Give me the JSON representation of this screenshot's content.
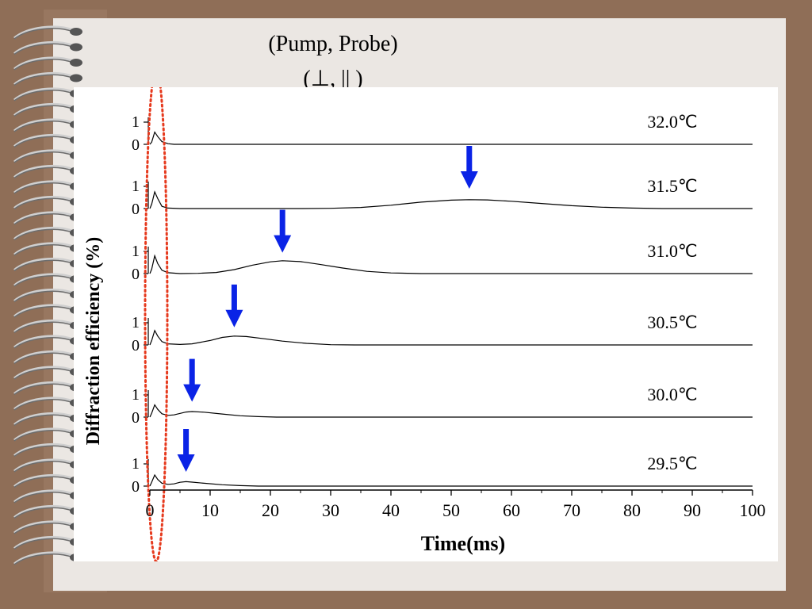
{
  "slide": {
    "header_line1": "(Pump, Probe)",
    "header_line2": "(⊥, || )"
  },
  "chart_data": {
    "type": "line",
    "xlabel": "Time(ms)",
    "ylabel": "Diffraction efficiency (%)",
    "xlim": [
      0,
      100
    ],
    "xticks": [
      0,
      10,
      20,
      30,
      40,
      50,
      60,
      70,
      80,
      90,
      100
    ],
    "ytick_labels": [
      "1",
      "0"
    ],
    "series": [
      {
        "name": "32.0℃",
        "peak_time": null,
        "points": [
          [
            0,
            0
          ],
          [
            0.3,
            0.1
          ],
          [
            0.8,
            0.55
          ],
          [
            1.3,
            0.35
          ],
          [
            2,
            0.12
          ],
          [
            3,
            0.03
          ],
          [
            4,
            0
          ],
          [
            100,
            0
          ]
        ]
      },
      {
        "name": "31.5℃",
        "peak_time": 53,
        "points": [
          [
            0,
            0
          ],
          [
            0.3,
            0.2
          ],
          [
            0.8,
            0.75
          ],
          [
            1.3,
            0.45
          ],
          [
            2,
            0.1
          ],
          [
            3,
            0.02
          ],
          [
            5,
            0
          ],
          [
            25,
            0
          ],
          [
            30,
            0.01
          ],
          [
            35,
            0.05
          ],
          [
            40,
            0.15
          ],
          [
            45,
            0.29
          ],
          [
            50,
            0.38
          ],
          [
            53,
            0.4
          ],
          [
            56,
            0.39
          ],
          [
            60,
            0.33
          ],
          [
            65,
            0.23
          ],
          [
            70,
            0.13
          ],
          [
            75,
            0.06
          ],
          [
            80,
            0.02
          ],
          [
            85,
            0
          ],
          [
            100,
            0
          ]
        ]
      },
      {
        "name": "31.0℃",
        "peak_time": 22,
        "points": [
          [
            0,
            0
          ],
          [
            0.3,
            0.2
          ],
          [
            0.8,
            0.8
          ],
          [
            1.3,
            0.45
          ],
          [
            2,
            0.15
          ],
          [
            3,
            0.04
          ],
          [
            5,
            0
          ],
          [
            8,
            0.01
          ],
          [
            11,
            0.05
          ],
          [
            14,
            0.18
          ],
          [
            17,
            0.38
          ],
          [
            20,
            0.53
          ],
          [
            22,
            0.58
          ],
          [
            25,
            0.54
          ],
          [
            28,
            0.42
          ],
          [
            32,
            0.25
          ],
          [
            36,
            0.1
          ],
          [
            40,
            0.03
          ],
          [
            45,
            0
          ],
          [
            100,
            0
          ]
        ]
      },
      {
        "name": "30.5℃",
        "peak_time": 14,
        "points": [
          [
            0,
            0
          ],
          [
            0.3,
            0.2
          ],
          [
            0.8,
            0.65
          ],
          [
            1.3,
            0.4
          ],
          [
            2,
            0.15
          ],
          [
            3,
            0.05
          ],
          [
            5,
            0.02
          ],
          [
            7,
            0.05
          ],
          [
            10,
            0.2
          ],
          [
            12,
            0.34
          ],
          [
            14,
            0.4
          ],
          [
            16,
            0.38
          ],
          [
            19,
            0.28
          ],
          [
            22,
            0.17
          ],
          [
            26,
            0.07
          ],
          [
            30,
            0.01
          ],
          [
            34,
            0
          ],
          [
            100,
            0
          ]
        ]
      },
      {
        "name": "30.0℃",
        "peak_time": 7,
        "points": [
          [
            0,
            0
          ],
          [
            0.3,
            0.18
          ],
          [
            0.8,
            0.55
          ],
          [
            1.3,
            0.35
          ],
          [
            2,
            0.15
          ],
          [
            3,
            0.08
          ],
          [
            4,
            0.1
          ],
          [
            6,
            0.23
          ],
          [
            7,
            0.25
          ],
          [
            9,
            0.22
          ],
          [
            12,
            0.14
          ],
          [
            15,
            0.06
          ],
          [
            18,
            0.02
          ],
          [
            21,
            0
          ],
          [
            100,
            0
          ]
        ]
      },
      {
        "name": "29.5℃",
        "peak_time": 6,
        "points": [
          [
            0,
            0
          ],
          [
            0.3,
            0.18
          ],
          [
            0.8,
            0.5
          ],
          [
            1.3,
            0.3
          ],
          [
            2,
            0.13
          ],
          [
            3,
            0.08
          ],
          [
            4,
            0.1
          ],
          [
            5,
            0.17
          ],
          [
            6,
            0.2
          ],
          [
            7,
            0.18
          ],
          [
            9,
            0.13
          ],
          [
            12,
            0.06
          ],
          [
            15,
            0.02
          ],
          [
            18,
            0
          ],
          [
            100,
            0
          ]
        ]
      }
    ],
    "annotations": [
      "Dotted ellipse highlighting the initial fast peak near t = 0",
      "Blue arrows marking the slow peak of each curve"
    ],
    "colors": {
      "curve": "#000000",
      "arrow": "#0a23e6",
      "ellipse": "#e63a1e"
    }
  }
}
